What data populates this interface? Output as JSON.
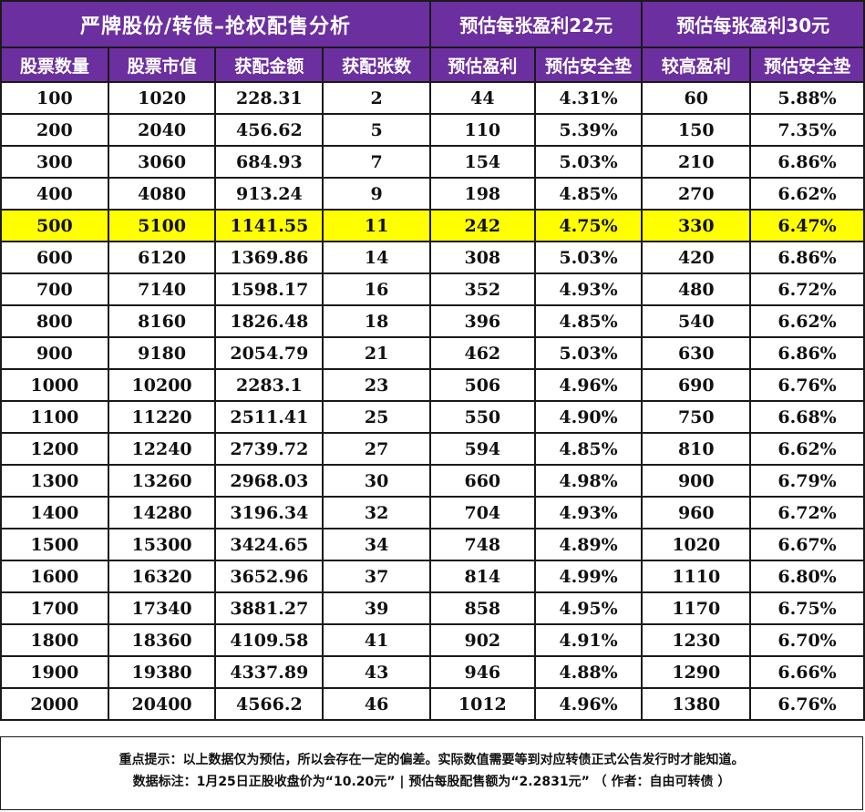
{
  "title": {
    "main": "严牌股份/转债–抢权配售分析",
    "group_22": "预估每张盈利22元",
    "group_30": "预估每张盈利30元"
  },
  "headers": [
    "股票数量",
    "股票市值",
    "获配金额",
    "获配张数",
    "预估盈利",
    "预估安全垫",
    "较高盈利",
    "预估安全垫"
  ],
  "highlight_row_index": 4,
  "colors": {
    "header_bg": "#6b2fa0",
    "highlight_bg": "#ffff00"
  },
  "rows": [
    [
      "100",
      "1020",
      "228.31",
      "2",
      "44",
      "4.31%",
      "60",
      "5.88%"
    ],
    [
      "200",
      "2040",
      "456.62",
      "5",
      "110",
      "5.39%",
      "150",
      "7.35%"
    ],
    [
      "300",
      "3060",
      "684.93",
      "7",
      "154",
      "5.03%",
      "210",
      "6.86%"
    ],
    [
      "400",
      "4080",
      "913.24",
      "9",
      "198",
      "4.85%",
      "270",
      "6.62%"
    ],
    [
      "500",
      "5100",
      "1141.55",
      "11",
      "242",
      "4.75%",
      "330",
      "6.47%"
    ],
    [
      "600",
      "6120",
      "1369.86",
      "14",
      "308",
      "5.03%",
      "420",
      "6.86%"
    ],
    [
      "700",
      "7140",
      "1598.17",
      "16",
      "352",
      "4.93%",
      "480",
      "6.72%"
    ],
    [
      "800",
      "8160",
      "1826.48",
      "18",
      "396",
      "4.85%",
      "540",
      "6.62%"
    ],
    [
      "900",
      "9180",
      "2054.79",
      "21",
      "462",
      "5.03%",
      "630",
      "6.86%"
    ],
    [
      "1000",
      "10200",
      "2283.1",
      "23",
      "506",
      "4.96%",
      "690",
      "6.76%"
    ],
    [
      "1100",
      "11220",
      "2511.41",
      "25",
      "550",
      "4.90%",
      "750",
      "6.68%"
    ],
    [
      "1200",
      "12240",
      "2739.72",
      "27",
      "594",
      "4.85%",
      "810",
      "6.62%"
    ],
    [
      "1300",
      "13260",
      "2968.03",
      "30",
      "660",
      "4.98%",
      "900",
      "6.79%"
    ],
    [
      "1400",
      "14280",
      "3196.34",
      "32",
      "704",
      "4.93%",
      "960",
      "6.72%"
    ],
    [
      "1500",
      "15300",
      "3424.65",
      "34",
      "748",
      "4.89%",
      "1020",
      "6.67%"
    ],
    [
      "1600",
      "16320",
      "3652.96",
      "37",
      "814",
      "4.99%",
      "1110",
      "6.80%"
    ],
    [
      "1700",
      "17340",
      "3881.27",
      "39",
      "858",
      "4.95%",
      "1170",
      "6.75%"
    ],
    [
      "1800",
      "18360",
      "4109.58",
      "41",
      "902",
      "4.91%",
      "1230",
      "6.70%"
    ],
    [
      "1900",
      "19380",
      "4337.89",
      "43",
      "946",
      "4.88%",
      "1290",
      "6.66%"
    ],
    [
      "2000",
      "20400",
      "4566.2",
      "46",
      "1012",
      "4.96%",
      "1380",
      "6.76%"
    ]
  ],
  "footer": {
    "line1": "重点提示：以上数据仅为预估，所以会存在一定的偏差。实际数值需要等到对应转债正式公告发行时才能知道。",
    "line2": "数据标注：1月25日正股收盘价为“10.20元” | 预估每股配售额为“2.2831元”  （ 作者：自由可转债 ）"
  }
}
